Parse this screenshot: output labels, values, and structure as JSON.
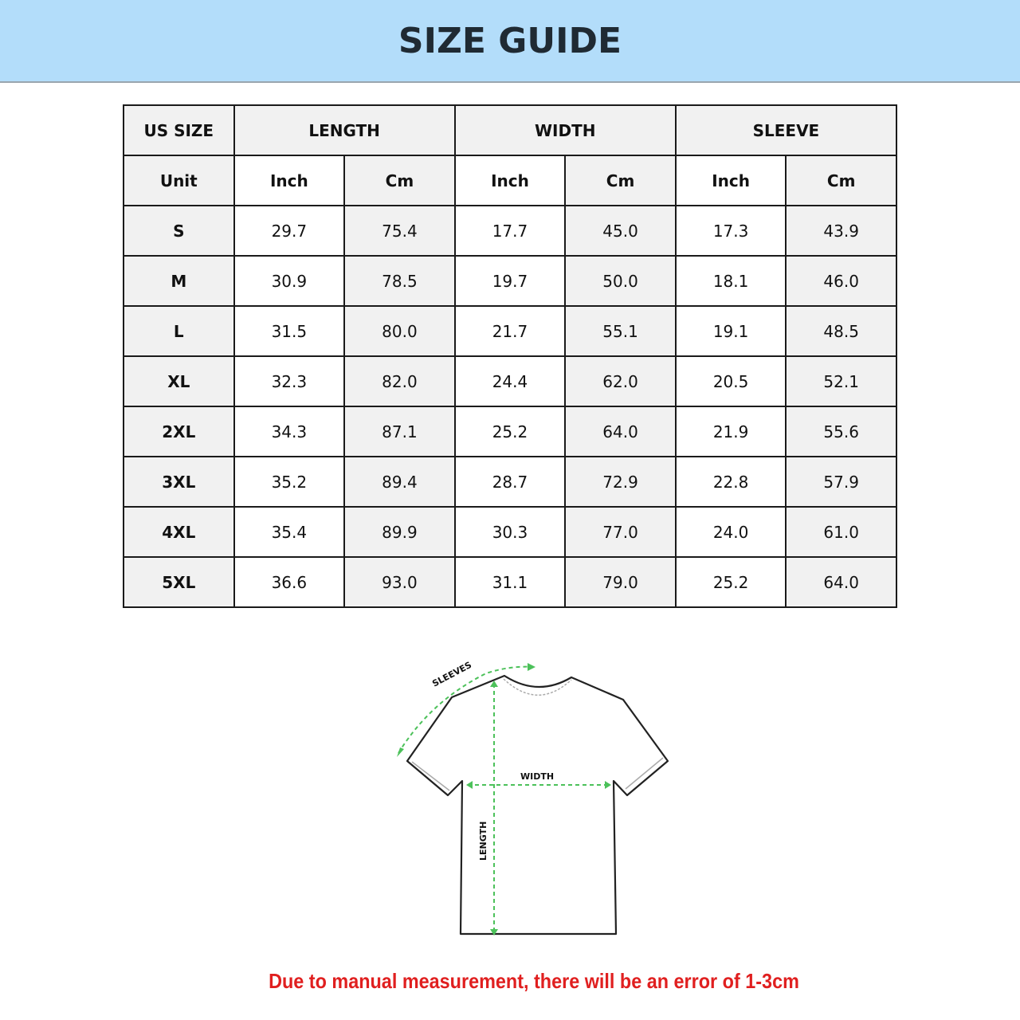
{
  "title": "SIZE GUIDE",
  "table": {
    "group_headers": [
      "US SIZE",
      "LENGTH",
      "WIDTH",
      "SLEEVE"
    ],
    "unit_row": [
      "Unit",
      "Inch",
      "Cm",
      "Inch",
      "Cm",
      "Inch",
      "Cm"
    ],
    "rows": [
      [
        "S",
        "29.7",
        "75.4",
        "17.7",
        "45.0",
        "17.3",
        "43.9"
      ],
      [
        "M",
        "30.9",
        "78.5",
        "19.7",
        "50.0",
        "18.1",
        "46.0"
      ],
      [
        "L",
        "31.5",
        "80.0",
        "21.7",
        "55.1",
        "19.1",
        "48.5"
      ],
      [
        "XL",
        "32.3",
        "82.0",
        "24.4",
        "62.0",
        "20.5",
        "52.1"
      ],
      [
        "2XL",
        "34.3",
        "87.1",
        "25.2",
        "64.0",
        "21.9",
        "55.6"
      ],
      [
        "3XL",
        "35.2",
        "89.4",
        "28.7",
        "72.9",
        "22.8",
        "57.9"
      ],
      [
        "4XL",
        "35.4",
        "89.9",
        "30.3",
        "77.0",
        "24.0",
        "61.0"
      ],
      [
        "5XL",
        "36.6",
        "93.0",
        "31.1",
        "79.0",
        "25.2",
        "64.0"
      ]
    ]
  },
  "diagram": {
    "sleeves_label": "SLEEVES",
    "width_label": "WIDTH",
    "length_label": "LENGTH",
    "arrow_color": "#4cc15a"
  },
  "note": "Due to manual measurement, there will be an error of 1-3cm",
  "colors": {
    "banner": "#b3ddfa",
    "note": "#e01f1f"
  }
}
